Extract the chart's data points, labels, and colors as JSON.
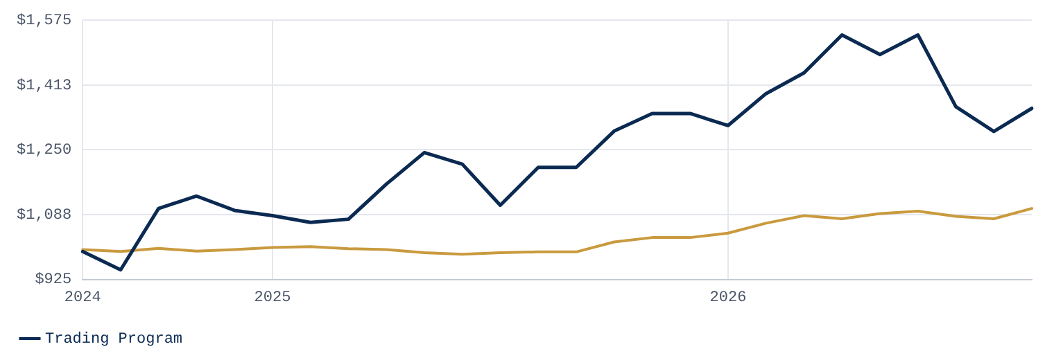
{
  "chart_data": {
    "type": "line",
    "categories": [
      "2024",
      null,
      null,
      null,
      null,
      "2025",
      null,
      null,
      null,
      null,
      null,
      null,
      null,
      null,
      null,
      null,
      null,
      "2026",
      null,
      null,
      null,
      null,
      null,
      null,
      null,
      null
    ],
    "series": [
      {
        "name": "Trading Program",
        "color": "#0b2a52",
        "values": [
          995,
          949,
          1103,
          1134,
          1098,
          1085,
          1068,
          1076,
          1164,
          1243,
          1214,
          1111,
          1206,
          1206,
          1297,
          1341,
          1341,
          1311,
          1391,
          1443,
          1538,
          1489,
          1538,
          1358,
          1296,
          1354
        ]
      },
      {
        "color": "#c99a3e",
        "values": [
          1000,
          995,
          1003,
          996,
          1000,
          1005,
          1007,
          1002,
          1000,
          992,
          988,
          992,
          994,
          994,
          1019,
          1030,
          1030,
          1041,
          1066,
          1085,
          1077,
          1090,
          1096,
          1083,
          1077,
          1103
        ]
      }
    ],
    "ylim": [
      925,
      1575
    ],
    "yticks": [
      {
        "value": 925,
        "label": "$925"
      },
      {
        "value": 1087.5,
        "label": "$1,088"
      },
      {
        "value": 1250,
        "label": "$1,250"
      },
      {
        "value": 1412.5,
        "label": "$1,413"
      },
      {
        "value": 1575,
        "label": "$1,575"
      }
    ],
    "grid": true,
    "legend": "bottom left",
    "marker": "none",
    "line_style": "solid"
  }
}
